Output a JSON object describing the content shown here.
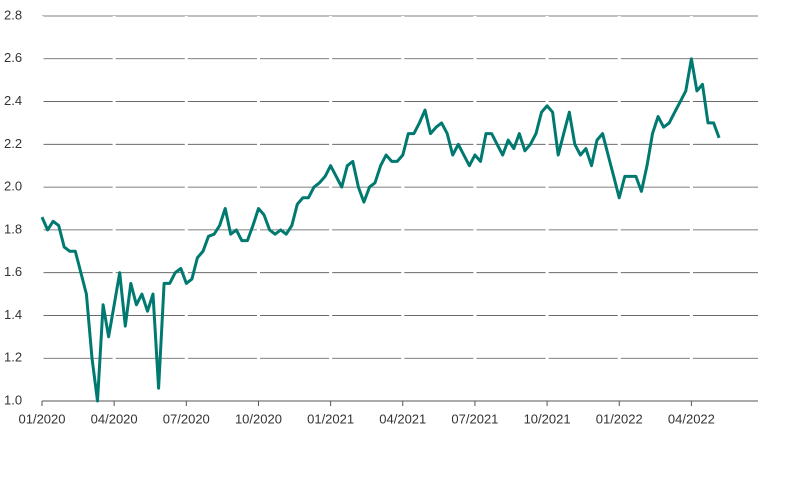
{
  "chart_data": {
    "type": "line",
    "xlim": [
      0,
      129
    ],
    "xticks": [
      {
        "value": 0,
        "label": "01/2020"
      },
      {
        "value": 13,
        "label": "04/2020"
      },
      {
        "value": 26,
        "label": "07/2020"
      },
      {
        "value": 39,
        "label": "10/2020"
      },
      {
        "value": 52,
        "label": "01/2021"
      },
      {
        "value": 65,
        "label": "04/2021"
      },
      {
        "value": 78,
        "label": "07/2021"
      },
      {
        "value": 91,
        "label": "10/2021"
      },
      {
        "value": 104,
        "label": "01/2022"
      },
      {
        "value": 117,
        "label": "04/2022"
      }
    ],
    "ylim": [
      1.0,
      2.8
    ],
    "yticks": [
      {
        "value": 1.0,
        "label": "1.0"
      },
      1.2,
      1.4,
      1.6,
      1.8,
      {
        "value": 2.0,
        "label": "2.0"
      },
      2.2,
      2.4,
      2.6,
      2.8
    ],
    "grid": true,
    "color": "#007a70",
    "values": [
      1.86,
      1.8,
      1.84,
      1.82,
      1.72,
      1.7,
      1.7,
      1.6,
      1.5,
      1.2,
      1.0,
      1.45,
      1.3,
      1.45,
      1.6,
      1.35,
      1.55,
      1.45,
      1.5,
      1.42,
      1.5,
      1.06,
      1.55,
      1.55,
      1.6,
      1.62,
      1.55,
      1.57,
      1.67,
      1.7,
      1.77,
      1.78,
      1.82,
      1.9,
      1.78,
      1.8,
      1.75,
      1.75,
      1.82,
      1.9,
      1.87,
      1.8,
      1.78,
      1.8,
      1.78,
      1.82,
      1.92,
      1.95,
      1.95,
      2.0,
      2.02,
      2.05,
      2.1,
      2.05,
      2.0,
      2.1,
      2.12,
      2.0,
      1.93,
      2.0,
      2.02,
      2.1,
      2.15,
      2.12,
      2.12,
      2.15,
      2.25,
      2.25,
      2.3,
      2.36,
      2.25,
      2.28,
      2.3,
      2.25,
      2.15,
      2.2,
      2.15,
      2.1,
      2.15,
      2.12,
      2.25,
      2.25,
      2.2,
      2.15,
      2.22,
      2.18,
      2.25,
      2.17,
      2.2,
      2.25,
      2.35,
      2.38,
      2.35,
      2.15,
      2.25,
      2.35,
      2.2,
      2.15,
      2.18,
      2.1,
      2.22,
      2.25,
      2.15,
      2.05,
      1.95,
      2.05,
      2.05,
      2.05,
      1.98,
      2.1,
      2.25,
      2.33,
      2.28,
      2.3,
      2.35,
      2.4,
      2.45,
      2.6,
      2.45,
      2.48,
      2.3,
      2.3,
      2.23
    ]
  }
}
